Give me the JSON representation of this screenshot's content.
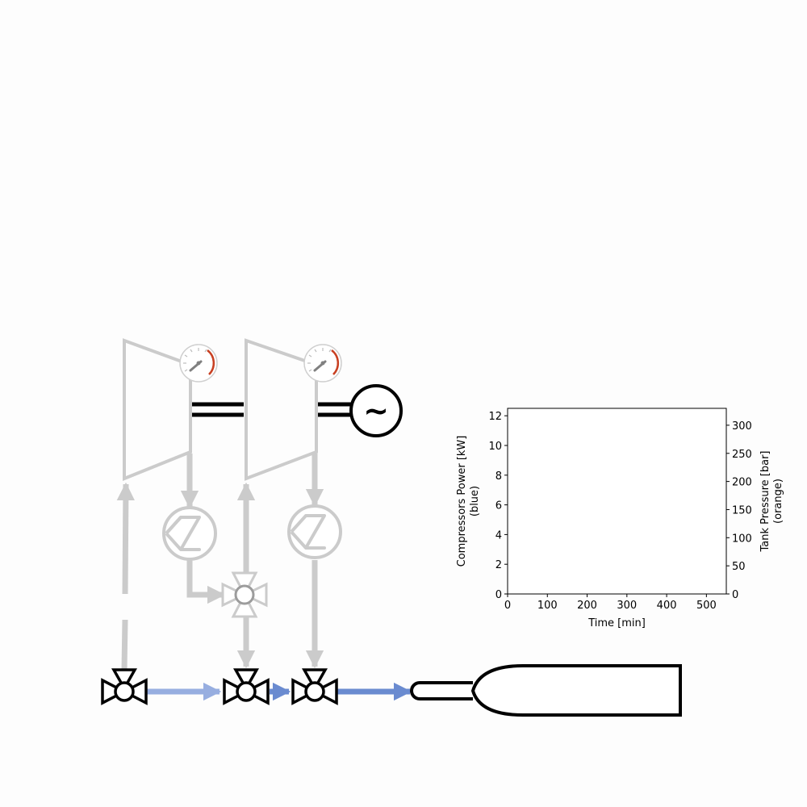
{
  "diagram": {
    "generator_symbol": "~",
    "components": {
      "compressor_stage_1": "compressor",
      "compressor_stage_2": "compressor",
      "intercooler_1": "heat-exchanger",
      "intercooler_2": "heat-exchanger",
      "generator": "generator",
      "storage_tank": "gas-cylinder",
      "valves": [
        "valve-1",
        "valve-2",
        "valve-3",
        "valve-4"
      ]
    },
    "colors": {
      "inactive": "#cbcbcb",
      "active_flow": "#6a8bd0",
      "active_flow_light": "#97aee0",
      "outline": "#000000",
      "gauge_needle": "#808080",
      "gauge_red": "#c84022"
    }
  },
  "chart_data": {
    "type": "line",
    "xlabel": "Time [min]",
    "ylabel": "Compressors Power [kW]",
    "ylabel_note": "(blue)",
    "y2label": "Tank Pressure [bar]",
    "y2label_note": "(orange)",
    "xlim": [
      0,
      550
    ],
    "ylim": [
      0,
      12.5
    ],
    "y2lim": [
      0,
      330
    ],
    "xticks": [
      0,
      100,
      200,
      300,
      400,
      500
    ],
    "yticks": [
      0,
      2,
      4,
      6,
      8,
      10,
      12
    ],
    "y2ticks": [
      0,
      50,
      100,
      150,
      200,
      250,
      300
    ],
    "series": [],
    "grid": false
  }
}
